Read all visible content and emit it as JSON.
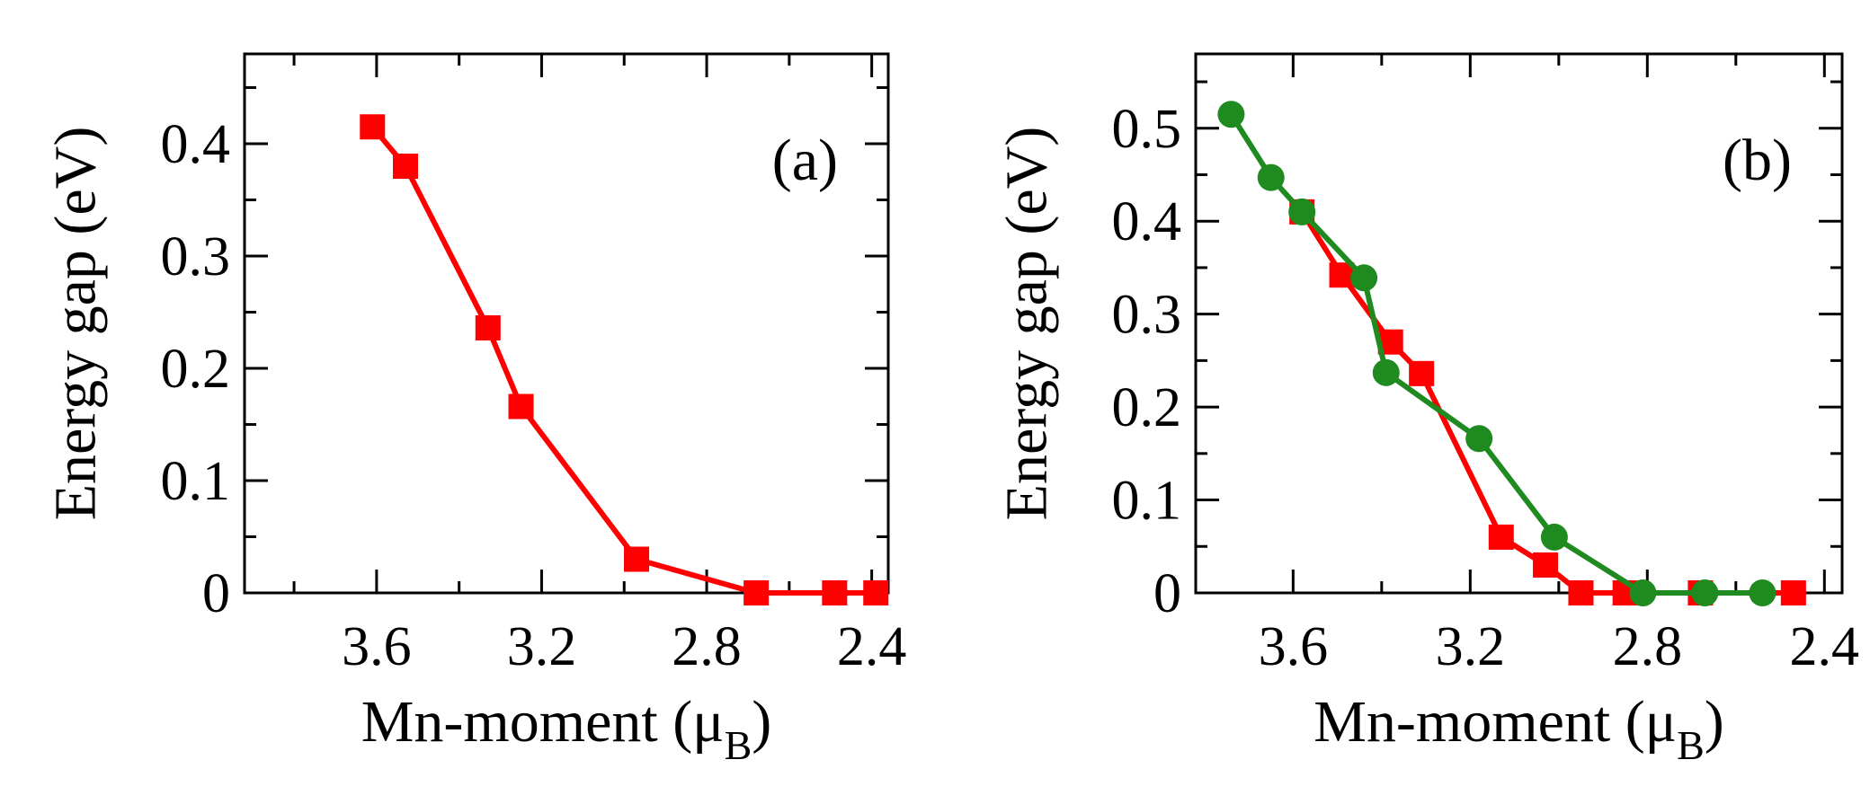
{
  "chart_data": [
    {
      "type": "line",
      "panel_label": "(a)",
      "xlabel_main": "Mn-moment (μ",
      "xlabel_sub": "B",
      "xlabel_close": ")",
      "ylabel": "Energy gap (eV)",
      "xlim": [
        3.92,
        2.36
      ],
      "ylim": [
        0,
        0.48
      ],
      "x_reversed": true,
      "xticks": [
        3.6,
        3.2,
        2.8,
        2.4
      ],
      "xtick_labels": [
        "3.6",
        "3.2",
        "2.8",
        "2.4"
      ],
      "xminor": [
        3.8,
        3.4,
        3.0,
        2.6
      ],
      "yticks": [
        0,
        0.1,
        0.2,
        0.3,
        0.4
      ],
      "ytick_labels": [
        "0",
        "0.1",
        "0.2",
        "0.3",
        "0.4"
      ],
      "series": [
        {
          "name": "red-squares",
          "marker": "square",
          "color": "#ff0000",
          "x": [
            3.61,
            3.53,
            3.33,
            3.25,
            2.97,
            2.68,
            2.49,
            2.39
          ],
          "y": [
            0.415,
            0.38,
            0.236,
            0.166,
            0.03,
            0.0,
            0.0,
            0.0
          ]
        }
      ]
    },
    {
      "type": "line",
      "panel_label": "(b)",
      "xlabel_main": "Mn-moment (μ",
      "xlabel_sub": "B",
      "xlabel_close": ")",
      "ylabel": "Energy gap (eV)",
      "xlim": [
        3.82,
        2.36
      ],
      "ylim": [
        0,
        0.58
      ],
      "x_reversed": true,
      "xticks": [
        3.6,
        3.2,
        2.8,
        2.4
      ],
      "xtick_labels": [
        "3.6",
        "3.2",
        "2.8",
        "2.4"
      ],
      "xminor": [
        3.4,
        3.0,
        2.6
      ],
      "yticks": [
        0,
        0.1,
        0.2,
        0.3,
        0.4,
        0.5
      ],
      "ytick_labels": [
        "0",
        "0.1",
        "0.2",
        "0.3",
        "0.4",
        "0.5"
      ],
      "series": [
        {
          "name": "red-squares",
          "marker": "square",
          "color": "#ff0000",
          "x": [
            3.58,
            3.49,
            3.38,
            3.31,
            3.13,
            3.03,
            2.95,
            2.85,
            2.68,
            2.47
          ],
          "y": [
            0.41,
            0.342,
            0.27,
            0.236,
            0.06,
            0.03,
            0.0,
            0.0,
            0.0,
            0.0
          ]
        },
        {
          "name": "green-circles",
          "marker": "circle",
          "color": "#1f8a1f",
          "x": [
            3.74,
            3.65,
            3.58,
            3.44,
            3.39,
            3.18,
            3.01,
            2.81,
            2.67,
            2.54
          ],
          "y": [
            0.515,
            0.447,
            0.41,
            0.339,
            0.237,
            0.166,
            0.06,
            0.0,
            0.0,
            0.0
          ]
        }
      ]
    }
  ]
}
